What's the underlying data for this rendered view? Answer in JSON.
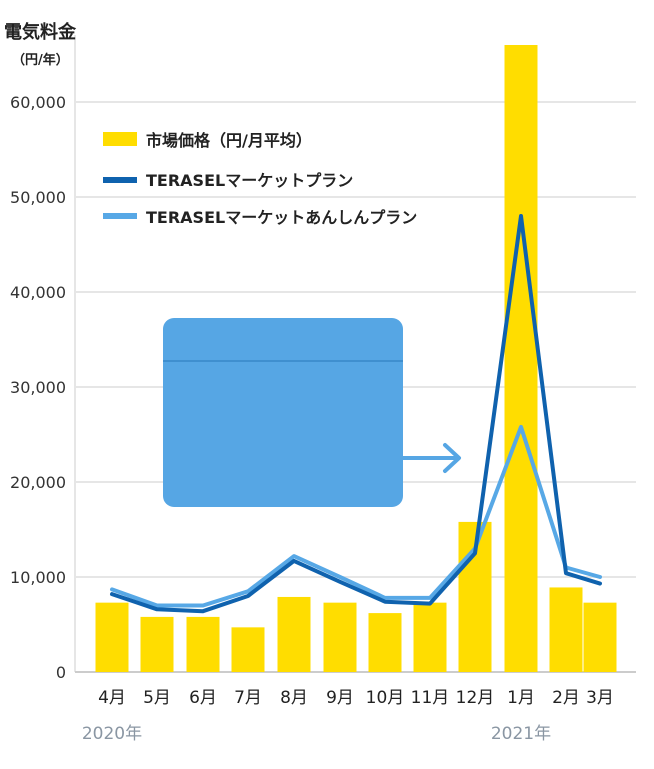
{
  "chart_data": {
    "type": "bar",
    "ylabel": "電気料金",
    "yunit": "（円/年）",
    "ylim": [
      0,
      66000
    ],
    "yticks": [
      0,
      10000,
      20000,
      30000,
      40000,
      50000,
      60000
    ],
    "ytick_labels": [
      "0",
      "10,000",
      "20,000",
      "30,000",
      "40,000",
      "50,000",
      "60,000"
    ],
    "categories": [
      "4月",
      "5月",
      "6月",
      "7月",
      "8月",
      "9月",
      "10月",
      "11月",
      "12月",
      "1月",
      "2月",
      "3月"
    ],
    "year_labels": [
      {
        "text": "2020年",
        "category_index": 0
      },
      {
        "text": "2021年",
        "category_index": 9
      }
    ],
    "series": [
      {
        "name": "市場価格（円/月平均）",
        "kind": "bar",
        "color": "#FFDD00",
        "values": [
          7300,
          5800,
          5800,
          4700,
          7900,
          7300,
          6200,
          7300,
          15800,
          66000,
          8900,
          7300
        ]
      },
      {
        "name": "TERASELマーケットプラン",
        "kind": "line",
        "color": "#0F62AE",
        "values": [
          8200,
          6600,
          6400,
          8000,
          11700,
          9500,
          7400,
          7200,
          12500,
          48000,
          10400,
          9300
        ]
      },
      {
        "name": "TERASELマーケットあんしんプラン",
        "kind": "line",
        "color": "#57A8E6",
        "values": [
          8700,
          7000,
          7000,
          8500,
          12200,
          10000,
          7800,
          7800,
          13000,
          25800,
          11000,
          10000
        ]
      }
    ],
    "grid": true,
    "legend_position": "top-left",
    "colors": {
      "accent_box": "#56A6E4",
      "accent_arrow": "#56A6E4"
    }
  }
}
